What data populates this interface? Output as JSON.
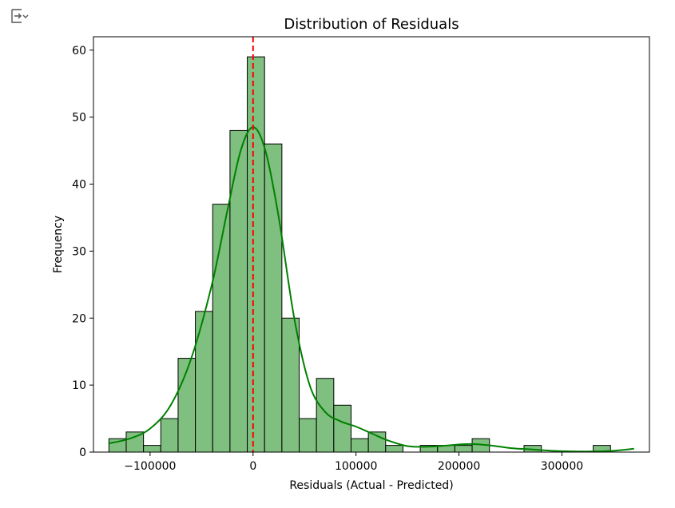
{
  "output_icon": "output-toggle-icon",
  "chart_data": {
    "type": "bar",
    "title": "Distribution of Residuals",
    "xlabel": "Residuals (Actual - Predicted)",
    "ylabel": "Frequency",
    "xlim": [
      -155000,
      385000
    ],
    "ylim": [
      0,
      62
    ],
    "x_ticks": [
      -100000,
      0,
      100000,
      200000,
      300000
    ],
    "x_tick_labels": [
      "−100000",
      "0",
      "100000",
      "200000",
      "300000"
    ],
    "y_ticks": [
      0,
      10,
      20,
      30,
      40,
      50,
      60
    ],
    "bin_start": -140000,
    "bin_width": 16800,
    "values": [
      2,
      3,
      1,
      5,
      14,
      21,
      37,
      48,
      59,
      46,
      20,
      5,
      11,
      7,
      2,
      3,
      1,
      0,
      1,
      1,
      1,
      2,
      0,
      0,
      1,
      0,
      0,
      0,
      1
    ],
    "kde": {
      "x": [
        -140000,
        -120000,
        -100000,
        -80000,
        -60000,
        -40000,
        -25000,
        -12000,
        0,
        12000,
        25000,
        40000,
        55000,
        70000,
        85000,
        100000,
        115000,
        130000,
        150000,
        170000,
        190000,
        210000,
        230000,
        250000,
        270000,
        290000,
        310000,
        330000,
        350000,
        370000
      ],
      "y": [
        1.3,
        2.0,
        3.5,
        7.0,
        14.0,
        25.0,
        36.0,
        45.0,
        48.5,
        45.0,
        35.0,
        20.0,
        10.0,
        6.0,
        4.6,
        3.8,
        2.8,
        1.8,
        0.9,
        0.8,
        1.0,
        1.2,
        1.0,
        0.6,
        0.4,
        0.2,
        0.1,
        0.1,
        0.2,
        0.5
      ]
    },
    "vline_x": 0,
    "bar_color": "#7fbf7f",
    "bar_edge": "#000000",
    "kde_color": "#008000",
    "vline_color": "#ff0000",
    "grid": false
  }
}
